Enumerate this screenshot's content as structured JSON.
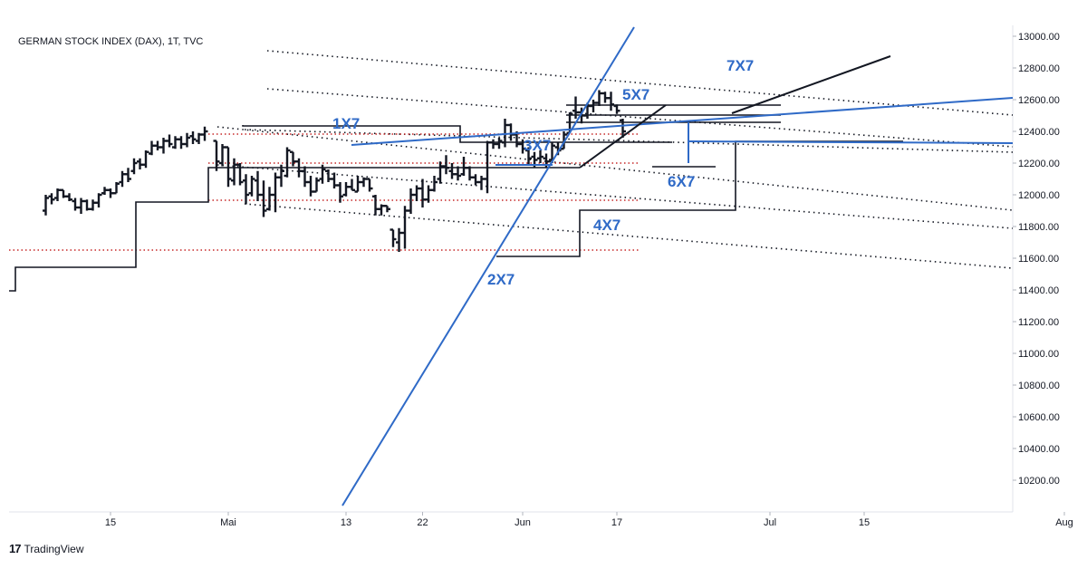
{
  "chart_data": {
    "type": "ohlc",
    "title": "GERMAN STOCK INDEX (DAX), 1T, TVC",
    "y_axis": {
      "ylim": [
        10050,
        13100
      ],
      "ticks": [
        "13000.00",
        "12800.00",
        "12600.00",
        "12400.00",
        "12200.00",
        "12000.00",
        "11800.00",
        "11600.00",
        "11400.00",
        "11200.00",
        "11000.00",
        "10800.00",
        "10600.00",
        "10400.00",
        "10200.00"
      ]
    },
    "x_axis": {
      "ticks": [
        {
          "label": "15",
          "day": 0
        },
        {
          "label": "Mai",
          "day": 20
        },
        {
          "label": "13",
          "day": 40
        },
        {
          "label": "22",
          "day": 53
        },
        {
          "label": "Jun",
          "day": 70
        },
        {
          "label": "17",
          "day": 86
        },
        {
          "label": "Jul",
          "day": 112
        },
        {
          "label": "15",
          "day": 128
        },
        {
          "label": "Aug",
          "day": 162
        }
      ]
    },
    "bars": [
      [
        -11.0,
        12000,
        11870,
        11900,
        11980
      ],
      [
        -10.0,
        12010,
        11940,
        11990,
        11970
      ],
      [
        -9.0,
        12040,
        11960,
        11980,
        12030
      ],
      [
        -8.0,
        12030,
        11980,
        12030,
        11990
      ],
      [
        -7.0,
        12010,
        11960,
        11990,
        11970
      ],
      [
        -6.0,
        11980,
        11900,
        11960,
        11920
      ],
      [
        -5.0,
        11980,
        11880,
        11920,
        11960
      ],
      [
        -4.0,
        11970,
        11900,
        11960,
        11910
      ],
      [
        -3.0,
        11970,
        11900,
        11910,
        11950
      ],
      [
        -2.0,
        12010,
        11920,
        11950,
        12000
      ],
      [
        -1.0,
        12050,
        12000,
        12010,
        12030
      ],
      [
        0.0,
        12040,
        11980,
        12030,
        12010
      ],
      [
        1.0,
        12080,
        12010,
        12010,
        12070
      ],
      [
        2.0,
        12150,
        12050,
        12080,
        12130
      ],
      [
        3.0,
        12170,
        12080,
        12130,
        12100
      ],
      [
        4.0,
        12230,
        12130,
        12150,
        12200
      ],
      [
        5.0,
        12230,
        12160,
        12210,
        12190
      ],
      [
        6.0,
        12280,
        12170,
        12190,
        12270
      ],
      [
        7.0,
        12340,
        12250,
        12260,
        12310
      ],
      [
        8.0,
        12340,
        12280,
        12310,
        12300
      ],
      [
        9.0,
        12360,
        12260,
        12300,
        12340
      ],
      [
        10.0,
        12380,
        12300,
        12340,
        12320
      ],
      [
        11.0,
        12370,
        12290,
        12300,
        12350
      ],
      [
        12.0,
        12370,
        12290,
        12350,
        12320
      ],
      [
        13.0,
        12390,
        12300,
        12320,
        12360
      ],
      [
        14.0,
        12400,
        12320,
        12370,
        12350
      ],
      [
        15.0,
        12390,
        12320,
        12340,
        12380
      ],
      [
        16.0,
        12430,
        12340,
        12380,
        12400
      ],
      [
        18.0,
        12340,
        12150,
        12340,
        12210
      ],
      [
        19.0,
        12320,
        12180,
        12200,
        12300
      ],
      [
        20.0,
        12300,
        12050,
        12300,
        12100
      ],
      [
        21.0,
        12230,
        12060,
        12090,
        12190
      ],
      [
        22.0,
        12200,
        12060,
        12190,
        12080
      ],
      [
        23.0,
        12130,
        11940,
        12090,
        12000
      ],
      [
        24.0,
        12120,
        11990,
        12010,
        12100
      ],
      [
        25.0,
        12150,
        11960,
        12090,
        12000
      ],
      [
        26.0,
        12090,
        11860,
        12000,
        11900
      ],
      [
        27.0,
        12050,
        11900,
        11910,
        12000
      ],
      [
        28.0,
        12140,
        11890,
        12000,
        12110
      ],
      [
        29.0,
        12190,
        12050,
        12110,
        12150
      ],
      [
        30.0,
        12300,
        12110,
        12120,
        12280
      ],
      [
        31.0,
        12270,
        12180,
        12270,
        12210
      ],
      [
        32.0,
        12230,
        12110,
        12210,
        12150
      ],
      [
        33.0,
        12180,
        12050,
        12150,
        12080
      ],
      [
        34.0,
        12120,
        11990,
        12080,
        12020
      ],
      [
        35.0,
        12110,
        12020,
        12020,
        12090
      ],
      [
        36.0,
        12190,
        12070,
        12100,
        12160
      ],
      [
        37.0,
        12160,
        12080,
        12150,
        12100
      ],
      [
        38.0,
        12140,
        12040,
        12100,
        12060
      ],
      [
        39.0,
        12080,
        11950,
        12060,
        11990
      ],
      [
        40.0,
        12080,
        11990,
        12000,
        12050
      ],
      [
        41.0,
        12100,
        12030,
        12050,
        12030
      ],
      [
        42.0,
        12120,
        12020,
        12020,
        12080
      ],
      [
        43.0,
        12110,
        12050,
        12080,
        12100
      ],
      [
        44.0,
        12100,
        12020,
        12100,
        12040
      ],
      [
        45.0,
        12000,
        11870,
        11990,
        11910
      ],
      [
        46.0,
        11940,
        11870,
        11910,
        11930
      ],
      [
        47.0,
        11930,
        11890,
        11930,
        11910
      ],
      [
        48.0,
        11780,
        11670,
        11780,
        11720
      ],
      [
        49.0,
        11790,
        11640,
        11700,
        11760
      ],
      [
        50.0,
        11930,
        11660,
        11760,
        11900
      ],
      [
        51.0,
        12040,
        11880,
        11900,
        12000
      ],
      [
        52.0,
        12060,
        11960,
        12000,
        12040
      ],
      [
        53.0,
        12100,
        11920,
        12040,
        11970
      ],
      [
        54.0,
        12060,
        11950,
        11970,
        12030
      ],
      [
        55.0,
        12120,
        12020,
        12030,
        12080
      ],
      [
        56.0,
        12210,
        12070,
        12100,
        12180
      ],
      [
        57.0,
        12250,
        12130,
        12180,
        12170
      ],
      [
        58.0,
        12200,
        12100,
        12150,
        12130
      ],
      [
        59.0,
        12180,
        12090,
        12130,
        12120
      ],
      [
        60.0,
        12240,
        12120,
        12130,
        12170
      ],
      [
        61.0,
        12180,
        12090,
        12170,
        12110
      ],
      [
        62.0,
        12130,
        12060,
        12110,
        12080
      ],
      [
        63.0,
        12120,
        12030,
        12080,
        12100
      ],
      [
        64.0,
        12340,
        12010,
        12100,
        12330
      ],
      [
        65.0,
        12350,
        12290,
        12330,
        12320
      ],
      [
        66.0,
        12360,
        12290,
        12320,
        12340
      ],
      [
        67.0,
        12480,
        12300,
        12330,
        12440
      ],
      [
        68.0,
        12450,
        12340,
        12440,
        12380
      ],
      [
        69.0,
        12400,
        12300,
        12380,
        12320
      ],
      [
        70.0,
        12350,
        12260,
        12320,
        12290
      ],
      [
        71.0,
        12300,
        12190,
        12280,
        12230
      ],
      [
        72.0,
        12270,
        12170,
        12240,
        12220
      ],
      [
        73.0,
        12280,
        12200,
        12230,
        12240
      ],
      [
        74.0,
        12260,
        12170,
        12230,
        12210
      ],
      [
        75.0,
        12330,
        12200,
        12220,
        12310
      ],
      [
        76.0,
        12330,
        12250,
        12300,
        12280
      ],
      [
        77.0,
        12400,
        12290,
        12290,
        12380
      ],
      [
        78.0,
        12520,
        12390,
        12390,
        12510
      ],
      [
        79.0,
        12620,
        12480,
        12530,
        12520
      ],
      [
        80.0,
        12550,
        12450,
        12520,
        12500
      ],
      [
        81.0,
        12580,
        12480,
        12500,
        12560
      ],
      [
        82.0,
        12600,
        12520,
        12560,
        12580
      ],
      [
        83.0,
        12660,
        12560,
        12580,
        12640
      ],
      [
        84.0,
        12650,
        12580,
        12640,
        12610
      ],
      [
        85.0,
        12650,
        12530,
        12610,
        12570
      ],
      [
        86.0,
        12570,
        12510,
        12560,
        12530
      ],
      [
        87.0,
        12480,
        12360,
        12470,
        12400
      ]
    ]
  },
  "annotations": {
    "labels": [
      "1X7",
      "2X7",
      "3X7",
      "4X7",
      "5X7",
      "6X7",
      "7X7"
    ]
  },
  "branding": {
    "text": "TradingView",
    "logo": "17"
  }
}
